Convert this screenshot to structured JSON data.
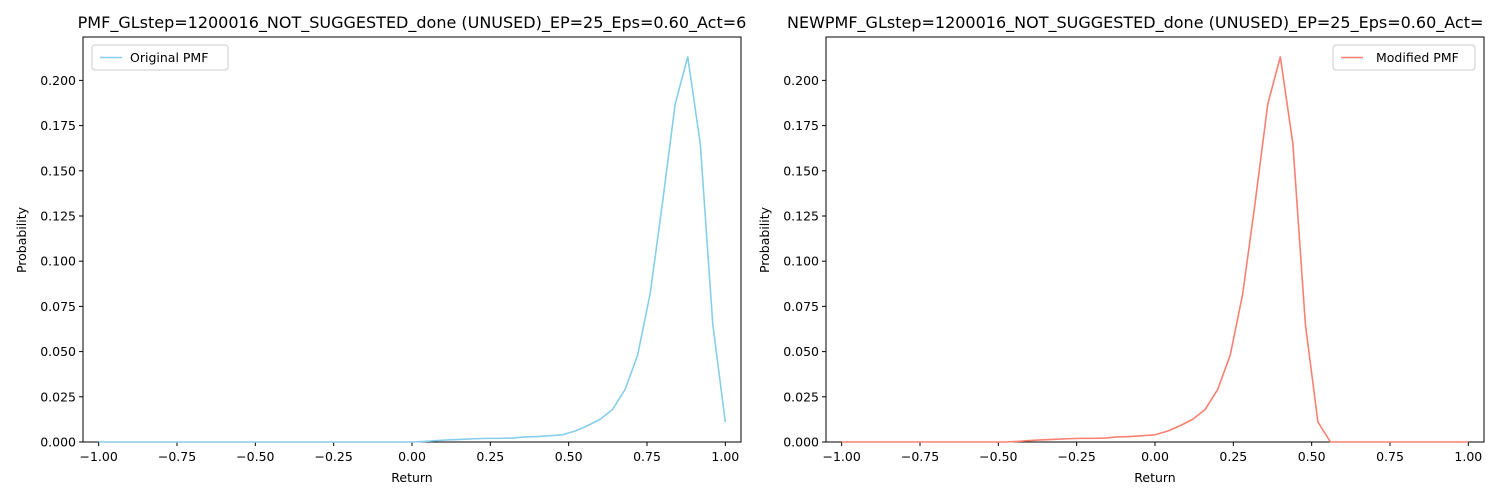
{
  "chart_data": [
    {
      "type": "line",
      "title": "PMF_GLstep=1200016_NOT_SUGGESTED_done (UNUSED)_EP=25_Eps=0.60_Act=6",
      "xlabel": "Return",
      "ylabel": "Probability",
      "xlim": [
        -1.05,
        1.05
      ],
      "ylim": [
        0,
        0.224
      ],
      "xticks": [
        -1.0,
        -0.75,
        -0.5,
        -0.25,
        0.0,
        0.25,
        0.5,
        0.75,
        1.0
      ],
      "xtick_labels": [
        "−1.00",
        "−0.75",
        "−0.50",
        "−0.25",
        "0.00",
        "0.25",
        "0.50",
        "0.75",
        "1.00"
      ],
      "yticks": [
        0.0,
        0.025,
        0.05,
        0.075,
        0.1,
        0.125,
        0.15,
        0.175,
        0.2
      ],
      "ytick_labels": [
        "0.000",
        "0.025",
        "0.050",
        "0.075",
        "0.100",
        "0.125",
        "0.150",
        "0.175",
        "0.200"
      ],
      "grid": false,
      "legend_position": "upper left",
      "series": [
        {
          "name": "Original PMF",
          "color": "#87ceeb",
          "x": [
            -1.0,
            -0.96,
            -0.92,
            -0.88,
            -0.84,
            -0.8,
            -0.76,
            -0.72,
            -0.68,
            -0.64,
            -0.6,
            -0.56,
            -0.52,
            -0.48,
            -0.44,
            -0.4,
            -0.36,
            -0.32,
            -0.28,
            -0.24,
            -0.2,
            -0.16,
            -0.12,
            -0.08,
            -0.04,
            0.0,
            0.04,
            0.08,
            0.12,
            0.16,
            0.2,
            0.24,
            0.28,
            0.32,
            0.36,
            0.4,
            0.44,
            0.48,
            0.52,
            0.56,
            0.6,
            0.64,
            0.68,
            0.72,
            0.76,
            0.8,
            0.84,
            0.88,
            0.92,
            0.96,
            1.0
          ],
          "y": [
            0,
            0,
            0,
            0,
            0,
            0,
            0,
            0,
            0,
            0,
            0,
            0,
            0,
            0,
            0,
            0,
            0,
            0,
            0,
            0,
            0,
            0,
            0,
            0,
            0,
            0,
            0.0003,
            0.0008,
            0.0012,
            0.0015,
            0.0018,
            0.002,
            0.002,
            0.0022,
            0.0028,
            0.003,
            0.0035,
            0.004,
            0.006,
            0.009,
            0.0125,
            0.018,
            0.029,
            0.048,
            0.082,
            0.133,
            0.187,
            0.213,
            0.165,
            0.065,
            0.011
          ]
        }
      ]
    },
    {
      "type": "line",
      "title": "NEWPMF_GLstep=1200016_NOT_SUGGESTED_done (UNUSED)_EP=25_Eps=0.60_Act=",
      "xlabel": "Return",
      "ylabel": "Probability",
      "xlim": [
        -1.05,
        1.05
      ],
      "ylim": [
        0,
        0.224
      ],
      "xticks": [
        -1.0,
        -0.75,
        -0.5,
        -0.25,
        0.0,
        0.25,
        0.5,
        0.75,
        1.0
      ],
      "xtick_labels": [
        "−1.00",
        "−0.75",
        "−0.50",
        "−0.25",
        "0.00",
        "0.25",
        "0.50",
        "0.75",
        "1.00"
      ],
      "yticks": [
        0.0,
        0.025,
        0.05,
        0.075,
        0.1,
        0.125,
        0.15,
        0.175,
        0.2
      ],
      "ytick_labels": [
        "0.000",
        "0.025",
        "0.050",
        "0.075",
        "0.100",
        "0.125",
        "0.150",
        "0.175",
        "0.200"
      ],
      "grid": false,
      "legend_position": "upper right",
      "series": [
        {
          "name": "Modified PMF",
          "color": "#fa8072",
          "x": [
            -1.0,
            -0.96,
            -0.92,
            -0.88,
            -0.84,
            -0.8,
            -0.76,
            -0.72,
            -0.68,
            -0.64,
            -0.6,
            -0.56,
            -0.52,
            -0.48,
            -0.44,
            -0.4,
            -0.36,
            -0.32,
            -0.28,
            -0.24,
            -0.2,
            -0.16,
            -0.12,
            -0.08,
            -0.04,
            0.0,
            0.04,
            0.08,
            0.12,
            0.16,
            0.2,
            0.24,
            0.28,
            0.32,
            0.36,
            0.4,
            0.44,
            0.48,
            0.52,
            0.56,
            0.6,
            0.64,
            0.68,
            0.72,
            0.76,
            0.8,
            0.84,
            0.88,
            0.92,
            0.96,
            1.0
          ],
          "y": [
            0,
            0,
            0,
            0,
            0,
            0,
            0,
            0,
            0,
            0,
            0,
            0,
            0,
            0,
            0.0003,
            0.0008,
            0.0012,
            0.0015,
            0.0018,
            0.002,
            0.002,
            0.0022,
            0.0028,
            0.003,
            0.0035,
            0.004,
            0.006,
            0.009,
            0.0125,
            0.018,
            0.029,
            0.048,
            0.082,
            0.133,
            0.187,
            0.213,
            0.165,
            0.065,
            0.011,
            0,
            0,
            0,
            0,
            0,
            0,
            0,
            0,
            0,
            0,
            0,
            0
          ]
        }
      ]
    }
  ]
}
